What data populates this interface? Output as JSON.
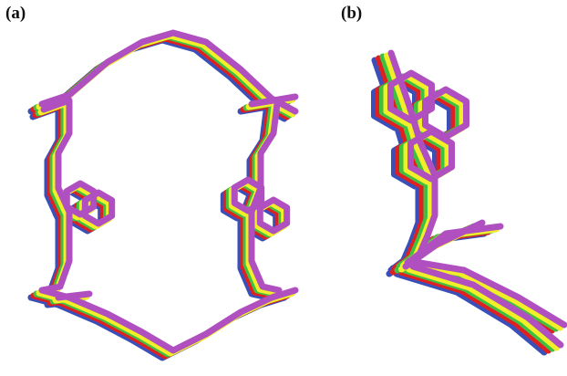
{
  "figure": {
    "panel_labels": [
      "(a)",
      "(b)"
    ]
  },
  "structures": [
    {
      "name": "blue",
      "color": "#3a4fb8"
    },
    {
      "name": "red",
      "color": "#e02020"
    },
    {
      "name": "green",
      "color": "#3fbf3f"
    },
    {
      "name": "yellow",
      "color": "#f2ee2a"
    },
    {
      "name": "purple",
      "color": "#b050c0"
    }
  ]
}
